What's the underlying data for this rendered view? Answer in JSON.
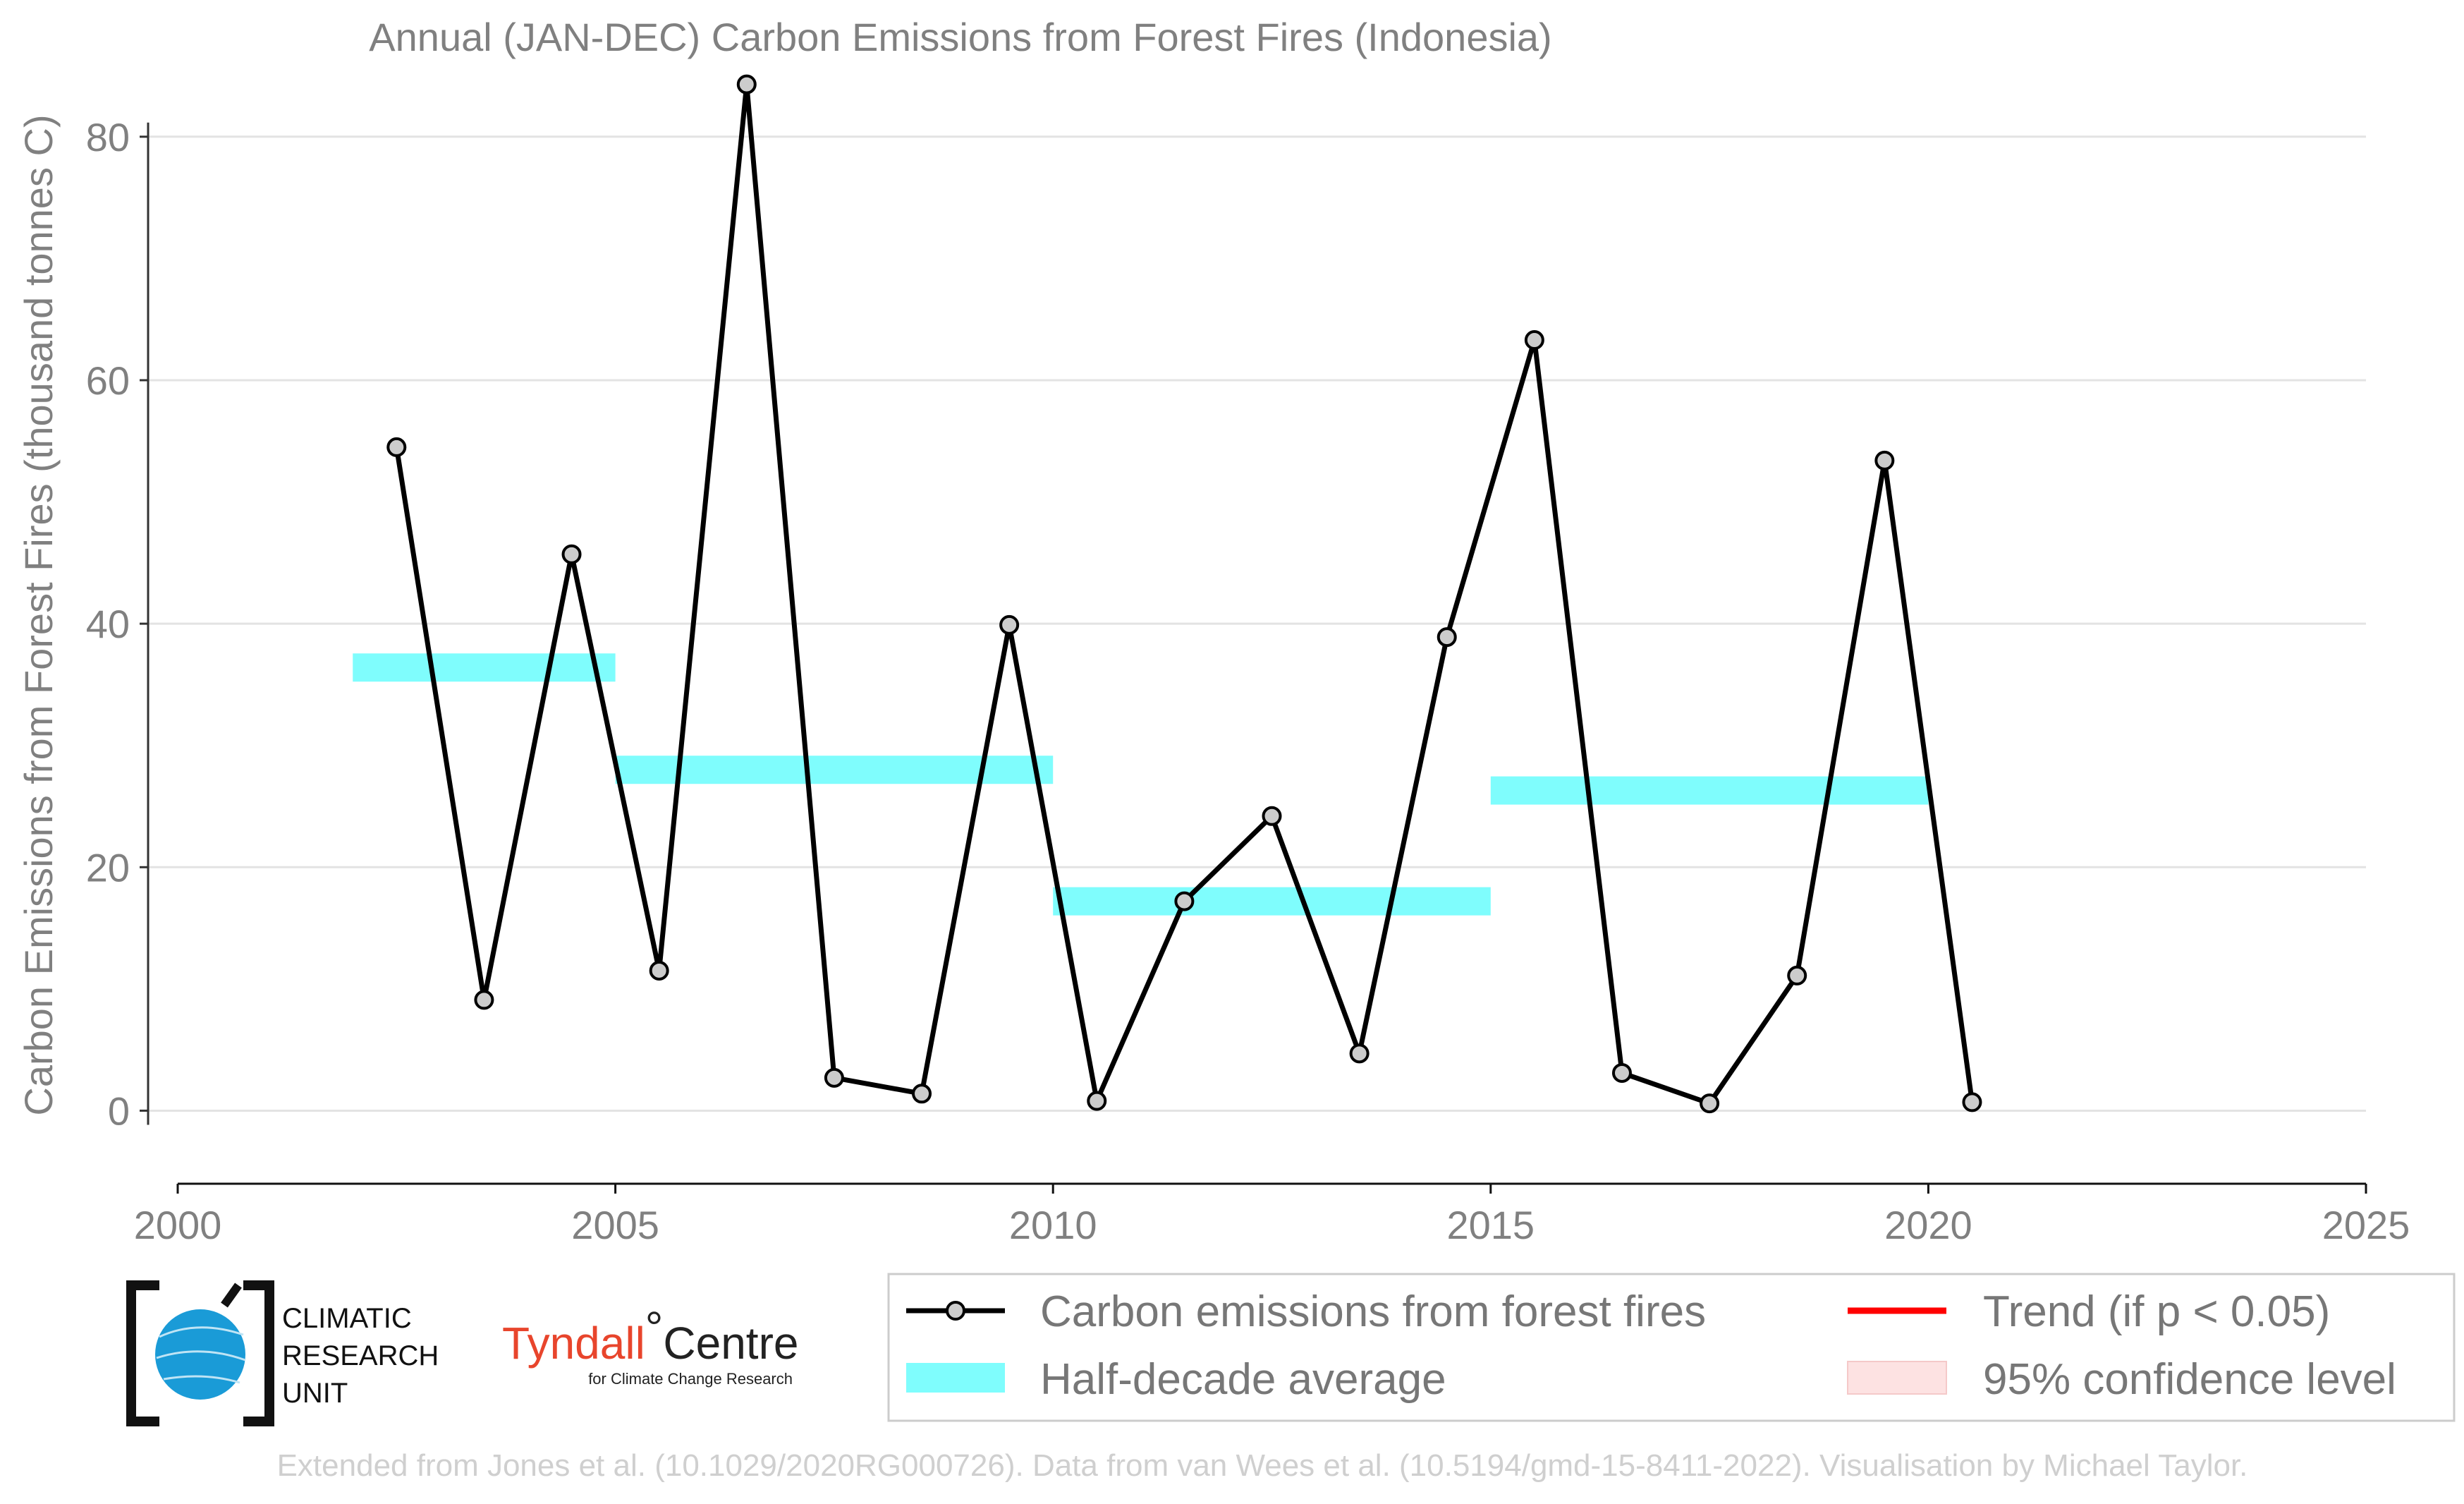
{
  "chart_data": {
    "type": "line",
    "title": "Annual (JAN-DEC) Carbon Emissions from Forest Fires (Indonesia)",
    "xlabel": "",
    "ylabel": "Carbon Emissions from Forest Fires (thousand tonnes C)",
    "xlim": [
      2000,
      2025
    ],
    "ylim": [
      -6,
      87
    ],
    "xticks": [
      2000,
      2005,
      2010,
      2015,
      2020,
      2025
    ],
    "yticks": [
      0,
      20,
      40,
      60,
      80
    ],
    "grid": "horizontal",
    "legend_position": "bottom-right",
    "series": [
      {
        "name": "Carbon emissions from forest fires",
        "type": "line",
        "color": "#000000",
        "marker_fill": "#cccccc",
        "x": [
          2002.5,
          2003.5,
          2004.5,
          2005.5,
          2006.5,
          2007.5,
          2008.5,
          2009.5,
          2010.5,
          2011.5,
          2012.5,
          2013.5,
          2014.5,
          2015.5,
          2016.5,
          2017.5,
          2018.5,
          2019.5,
          2020.5
        ],
        "y": [
          54.5,
          9.1,
          45.7,
          11.5,
          84.3,
          2.7,
          1.4,
          39.9,
          0.8,
          17.2,
          24.2,
          4.7,
          38.9,
          63.3,
          3.1,
          0.6,
          11.1,
          53.4,
          0.7
        ]
      },
      {
        "name": "Half-decade average",
        "type": "step",
        "color": "#7ffdfd",
        "segments": [
          {
            "x0": 2002,
            "x1": 2005,
            "y": 36.4
          },
          {
            "x0": 2005,
            "x1": 2010,
            "y": 28.0
          },
          {
            "x0": 2010,
            "x1": 2015,
            "y": 17.2
          },
          {
            "x0": 2015,
            "x1": 2020,
            "y": 26.3
          }
        ]
      }
    ]
  },
  "legend": {
    "items": [
      {
        "label": "Carbon emissions from forest fires",
        "color": "#000000"
      },
      {
        "label": "Half-decade average",
        "color": "#7ffdfd"
      },
      {
        "label": "Trend (if p < 0.05)",
        "color": "#ff0000"
      },
      {
        "label": "95% confidence level",
        "color": "#fde2e2"
      }
    ]
  },
  "logos": {
    "cru_lines": [
      "CLIMATIC",
      "RESEARCH",
      "UNIT"
    ],
    "tyndall_name": "Tyndall",
    "tyndall_centre": "Centre",
    "tyndall_subtitle": "for Climate Change Research"
  },
  "credit": "Extended from Jones et al. (10.1029/2020RG000726). Data from van Wees et al. (10.5194/gmd-15-8411-2022). Visualisation by Michael Taylor."
}
